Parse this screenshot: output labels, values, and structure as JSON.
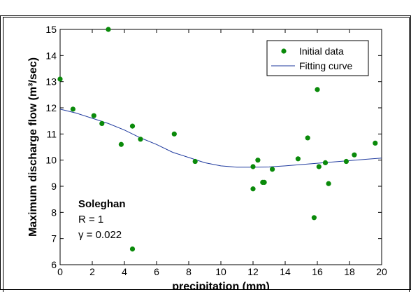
{
  "chart_data": {
    "type": "scatter",
    "xlabel": "precipitation (mm)",
    "ylabel": "Maximum discharge flow (m³/sec)",
    "xlim": [
      0,
      20
    ],
    "ylim": [
      6,
      15
    ],
    "xticks": [
      "0",
      "2",
      "4",
      "6",
      "8",
      "10",
      "12",
      "14",
      "16",
      "18",
      "20"
    ],
    "yticks": [
      "6",
      "7",
      "8",
      "9",
      "10",
      "11",
      "12",
      "13",
      "14",
      "15"
    ],
    "legend_position": "top-right",
    "legend": [
      "Initial data",
      "Fitting curve"
    ],
    "colors": {
      "points": "#0a8a0a",
      "curve": "#1f3a9e"
    },
    "annotation": {
      "station": "Soleghan",
      "r_text": "R = 1",
      "gamma_text": "γ = 0.022"
    },
    "series": [
      {
        "name": "Initial data",
        "kind": "points",
        "x": [
          0.0,
          0.8,
          2.1,
          2.6,
          3.0,
          3.8,
          4.5,
          4.5,
          5.0,
          7.1,
          8.4,
          12.0,
          12.0,
          12.3,
          12.6,
          12.7,
          13.2,
          14.8,
          15.4,
          15.8,
          16.0,
          16.1,
          16.5,
          16.7,
          17.8,
          18.3,
          19.6
        ],
        "y": [
          13.1,
          11.95,
          11.7,
          11.4,
          15.0,
          10.6,
          11.3,
          6.6,
          10.8,
          11.0,
          9.95,
          9.75,
          8.9,
          10.0,
          9.15,
          9.15,
          9.65,
          10.05,
          10.85,
          7.8,
          12.7,
          9.75,
          9.9,
          9.1,
          9.95,
          10.2,
          10.65
        ]
      },
      {
        "name": "Fitting curve",
        "kind": "line",
        "x": [
          0,
          1,
          2,
          3,
          4,
          5,
          6,
          7,
          8,
          9,
          10,
          11,
          12,
          13,
          14,
          15,
          16,
          17,
          18,
          19,
          20
        ],
        "y": [
          11.95,
          11.8,
          11.6,
          11.4,
          11.15,
          10.85,
          10.6,
          10.3,
          10.1,
          9.9,
          9.78,
          9.73,
          9.73,
          9.74,
          9.78,
          9.83,
          9.88,
          9.93,
          9.98,
          10.03,
          10.08
        ]
      }
    ]
  }
}
